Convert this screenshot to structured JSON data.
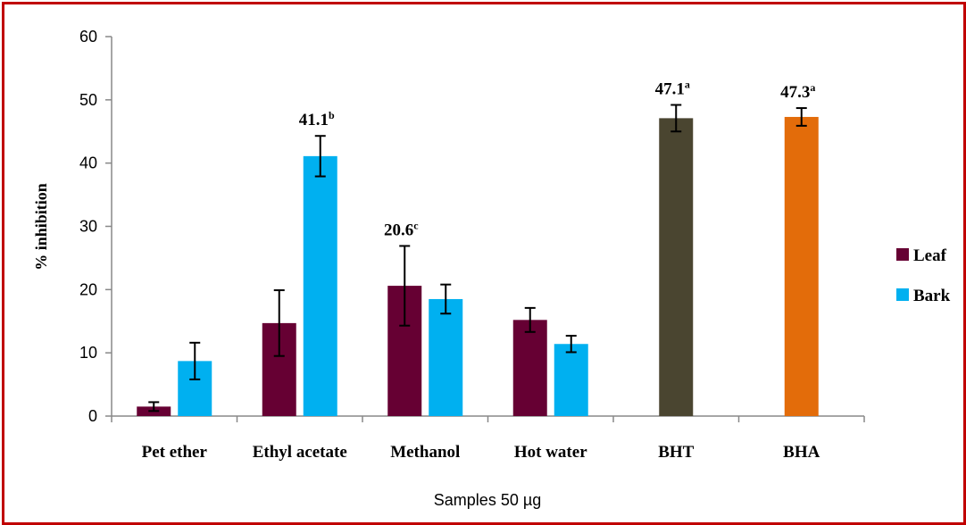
{
  "chart_data": {
    "type": "bar",
    "title": "",
    "xlabel": "Samples 50 µg",
    "ylabel": "% inhibition",
    "ylim": [
      0,
      60
    ],
    "yticks": [
      0,
      10,
      20,
      30,
      40,
      50,
      60
    ],
    "categories": [
      "Pet ether",
      "Ethyl acetate",
      "Methanol",
      "Hot water",
      "BHT",
      "BHA"
    ],
    "series": [
      {
        "name": "Leaf",
        "color": "#660033",
        "values": [
          1.5,
          14.7,
          20.6,
          15.2,
          null,
          null
        ],
        "errors": [
          0.7,
          5.2,
          6.3,
          1.9,
          null,
          null
        ]
      },
      {
        "name": "Bark",
        "color": "#00b0f0",
        "values": [
          8.7,
          41.1,
          18.5,
          11.4,
          null,
          null
        ],
        "errors": [
          2.9,
          3.2,
          2.3,
          1.3,
          null,
          null
        ]
      }
    ],
    "standards": [
      {
        "category": "BHT",
        "value": 47.1,
        "error": 2.1,
        "color": "#4a4530"
      },
      {
        "category": "BHA",
        "value": 47.3,
        "error": 1.4,
        "color": "#e36c0a"
      }
    ],
    "annotations": [
      {
        "category": "Ethyl acetate",
        "series": "Bark",
        "text": "41.1",
        "sup": "b"
      },
      {
        "category": "Methanol",
        "series": "Leaf",
        "text": "20.6",
        "sup": "c"
      },
      {
        "category": "BHT",
        "series": "standard",
        "text": "47.1",
        "sup": "a"
      },
      {
        "category": "BHA",
        "series": "standard",
        "text": "47.3",
        "sup": "a"
      }
    ],
    "legend": [
      "Leaf",
      "Bark"
    ],
    "legend_position": "right",
    "grid": false
  }
}
